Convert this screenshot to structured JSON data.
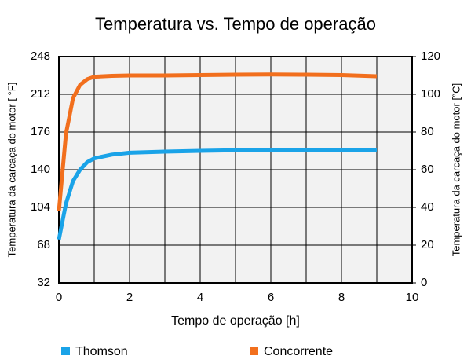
{
  "chart_data": {
    "type": "line",
    "title": "Temperatura vs. Tempo de operação",
    "xlabel": "Tempo de operação [h]",
    "ylabel": "Temperatura da carcaça do motor  [ °F]",
    "y2label": "Temperatura da carcaça do motor  [°C]",
    "x": [
      0,
      0.2,
      0.4,
      0.6,
      0.8,
      1,
      1.5,
      2,
      3,
      4,
      5,
      6,
      7,
      8,
      9
    ],
    "series": [
      {
        "name": "Thomson",
        "color": "#1aa3e8",
        "axis": "y2",
        "values": [
          23,
          42,
          54,
          60,
          64,
          66,
          68,
          69,
          69.6,
          70,
          70.3,
          70.5,
          70.6,
          70.5,
          70.4
        ]
      },
      {
        "name": "Concorrente",
        "color": "#f26f1d",
        "axis": "y2",
        "values": [
          38,
          79,
          98,
          105,
          108,
          109.3,
          109.8,
          110,
          110,
          110.2,
          110.4,
          110.5,
          110.4,
          110.2,
          109.6
        ]
      }
    ],
    "xlim": [
      0,
      10
    ],
    "xticks": [
      0,
      2,
      4,
      6,
      8,
      10
    ],
    "xminorticks": [
      1,
      3,
      5,
      7,
      9
    ],
    "ylim": [
      32,
      248
    ],
    "yticks": [
      32,
      68,
      104,
      140,
      176,
      212,
      248
    ],
    "y2lim": [
      0,
      120
    ],
    "y2ticks": [
      0,
      20,
      40,
      60,
      80,
      100,
      120
    ],
    "grid": true
  }
}
